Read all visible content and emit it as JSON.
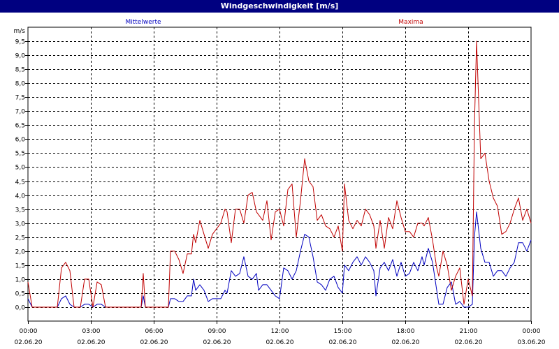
{
  "window": {
    "title": "Windgeschwindigkeit [m/s]"
  },
  "chart_data": {
    "type": "line",
    "title": "Windgeschwindigkeit [m/s]",
    "ylabel": "m/s",
    "ylim": [
      -0.5,
      10.0
    ],
    "xlim": [
      0,
      24
    ],
    "y_ticks": [
      0,
      0.5,
      1,
      1.5,
      2,
      2.5,
      3,
      3.5,
      4,
      4.5,
      5,
      5.5,
      6,
      6.5,
      7,
      7.5,
      8,
      8.5,
      9,
      9.5
    ],
    "y_tick_labels": [
      "0,0",
      "0,5",
      "1,0",
      "1,5",
      "2,0",
      "2,5",
      "3,0",
      "3,5",
      "4,0",
      "4,5",
      "5,0",
      "5,5",
      "6,0",
      "6,5",
      "7,0",
      "7,5",
      "8,0",
      "8,5",
      "9,0",
      "9,5"
    ],
    "x_ticks": [
      0,
      3,
      6,
      9,
      12,
      15,
      18,
      21,
      24
    ],
    "x_tick_times": [
      "00:00",
      "03:00",
      "06:00",
      "09:00",
      "12:00",
      "15:00",
      "18:00",
      "21:00",
      "00:00"
    ],
    "x_tick_dates": [
      "02.06.20",
      "02.06.20",
      "02.06.20",
      "02.06.20",
      "02.06.20",
      "02.06.20",
      "02.06.20",
      "02.06.20",
      "03.06.20"
    ],
    "grid": true,
    "series": [
      {
        "name": "Mittelwerte",
        "color": "#0000c0",
        "points": [
          [
            0,
            0.3
          ],
          [
            0.2,
            0.0
          ],
          [
            0.5,
            0.0
          ],
          [
            1.0,
            0.0
          ],
          [
            1.4,
            0.0
          ],
          [
            1.6,
            0.3
          ],
          [
            1.8,
            0.4
          ],
          [
            2.0,
            0.1
          ],
          [
            2.2,
            0.0
          ],
          [
            2.5,
            0.0
          ],
          [
            2.7,
            0.1
          ],
          [
            2.9,
            0.1
          ],
          [
            3.1,
            0.0
          ],
          [
            3.3,
            0.1
          ],
          [
            3.5,
            0.1
          ],
          [
            3.7,
            0.0
          ],
          [
            4.0,
            0.0
          ],
          [
            5.0,
            0.0
          ],
          [
            5.4,
            0.0
          ],
          [
            5.5,
            0.4
          ],
          [
            5.6,
            0.0
          ],
          [
            6.0,
            0.0
          ],
          [
            6.5,
            0.0
          ],
          [
            6.7,
            0.0
          ],
          [
            6.8,
            0.3
          ],
          [
            7.0,
            0.3
          ],
          [
            7.2,
            0.2
          ],
          [
            7.4,
            0.2
          ],
          [
            7.6,
            0.4
          ],
          [
            7.8,
            0.4
          ],
          [
            7.9,
            1.0
          ],
          [
            8.0,
            0.6
          ],
          [
            8.2,
            0.8
          ],
          [
            8.4,
            0.6
          ],
          [
            8.6,
            0.2
          ],
          [
            8.8,
            0.3
          ],
          [
            9.0,
            0.3
          ],
          [
            9.2,
            0.3
          ],
          [
            9.4,
            0.6
          ],
          [
            9.5,
            0.5
          ],
          [
            9.7,
            1.3
          ],
          [
            9.9,
            1.1
          ],
          [
            10.1,
            1.2
          ],
          [
            10.3,
            1.8
          ],
          [
            10.5,
            1.1
          ],
          [
            10.7,
            1.0
          ],
          [
            10.9,
            1.2
          ],
          [
            11.0,
            0.6
          ],
          [
            11.2,
            0.8
          ],
          [
            11.4,
            0.8
          ],
          [
            11.6,
            0.6
          ],
          [
            11.8,
            0.4
          ],
          [
            12.0,
            0.3
          ],
          [
            12.2,
            1.4
          ],
          [
            12.4,
            1.3
          ],
          [
            12.6,
            1.0
          ],
          [
            12.8,
            1.3
          ],
          [
            13.0,
            2.0
          ],
          [
            13.2,
            2.6
          ],
          [
            13.4,
            2.5
          ],
          [
            13.6,
            1.8
          ],
          [
            13.8,
            0.9
          ],
          [
            14.0,
            0.8
          ],
          [
            14.2,
            0.6
          ],
          [
            14.4,
            1.0
          ],
          [
            14.6,
            1.1
          ],
          [
            14.8,
            0.7
          ],
          [
            15.0,
            0.5
          ],
          [
            15.1,
            1.5
          ],
          [
            15.3,
            1.3
          ],
          [
            15.5,
            1.6
          ],
          [
            15.7,
            1.8
          ],
          [
            15.9,
            1.5
          ],
          [
            16.1,
            1.8
          ],
          [
            16.3,
            1.6
          ],
          [
            16.5,
            1.3
          ],
          [
            16.6,
            0.4
          ],
          [
            16.8,
            1.4
          ],
          [
            17.0,
            1.6
          ],
          [
            17.2,
            1.3
          ],
          [
            17.4,
            1.7
          ],
          [
            17.6,
            1.1
          ],
          [
            17.8,
            1.6
          ],
          [
            18.0,
            1.1
          ],
          [
            18.2,
            1.2
          ],
          [
            18.4,
            1.6
          ],
          [
            18.6,
            1.3
          ],
          [
            18.8,
            1.8
          ],
          [
            18.9,
            1.5
          ],
          [
            19.1,
            2.1
          ],
          [
            19.3,
            1.6
          ],
          [
            19.5,
            0.6
          ],
          [
            19.6,
            0.1
          ],
          [
            19.8,
            0.1
          ],
          [
            20.0,
            0.7
          ],
          [
            20.2,
            0.9
          ],
          [
            20.4,
            0.1
          ],
          [
            20.6,
            0.2
          ],
          [
            20.8,
            0.0
          ],
          [
            21.0,
            0.0
          ],
          [
            21.2,
            0.1
          ],
          [
            21.3,
            2.5
          ],
          [
            21.4,
            3.4
          ],
          [
            21.6,
            2.1
          ],
          [
            21.8,
            1.6
          ],
          [
            22.0,
            1.6
          ],
          [
            22.2,
            1.1
          ],
          [
            22.4,
            1.3
          ],
          [
            22.6,
            1.3
          ],
          [
            22.8,
            1.1
          ],
          [
            23.0,
            1.4
          ],
          [
            23.2,
            1.6
          ],
          [
            23.4,
            2.3
          ],
          [
            23.6,
            2.3
          ],
          [
            23.8,
            2.0
          ],
          [
            24.0,
            2.4
          ]
        ]
      },
      {
        "name": "Maxima",
        "color": "#c00000",
        "points": [
          [
            0,
            0.9
          ],
          [
            0.2,
            0.0
          ],
          [
            0.5,
            0.0
          ],
          [
            1.0,
            0.0
          ],
          [
            1.4,
            0.0
          ],
          [
            1.6,
            1.4
          ],
          [
            1.8,
            1.6
          ],
          [
            2.0,
            1.3
          ],
          [
            2.2,
            0.0
          ],
          [
            2.5,
            0.0
          ],
          [
            2.7,
            1.0
          ],
          [
            2.9,
            1.0
          ],
          [
            3.1,
            0.0
          ],
          [
            3.3,
            0.9
          ],
          [
            3.5,
            0.8
          ],
          [
            3.7,
            0.0
          ],
          [
            4.0,
            0.0
          ],
          [
            5.0,
            0.0
          ],
          [
            5.4,
            0.0
          ],
          [
            5.5,
            1.2
          ],
          [
            5.6,
            0.0
          ],
          [
            6.0,
            0.0
          ],
          [
            6.5,
            0.0
          ],
          [
            6.7,
            0.0
          ],
          [
            6.8,
            2.0
          ],
          [
            7.0,
            2.0
          ],
          [
            7.2,
            1.7
          ],
          [
            7.4,
            1.2
          ],
          [
            7.6,
            1.9
          ],
          [
            7.8,
            1.9
          ],
          [
            7.9,
            2.6
          ],
          [
            8.0,
            2.3
          ],
          [
            8.2,
            3.1
          ],
          [
            8.4,
            2.6
          ],
          [
            8.6,
            2.1
          ],
          [
            8.8,
            2.6
          ],
          [
            9.0,
            2.8
          ],
          [
            9.2,
            3.0
          ],
          [
            9.4,
            3.5
          ],
          [
            9.5,
            3.4
          ],
          [
            9.7,
            2.3
          ],
          [
            9.9,
            3.5
          ],
          [
            10.1,
            3.5
          ],
          [
            10.3,
            3.0
          ],
          [
            10.5,
            4.0
          ],
          [
            10.7,
            4.1
          ],
          [
            10.9,
            3.4
          ],
          [
            11.0,
            3.3
          ],
          [
            11.2,
            3.1
          ],
          [
            11.4,
            3.8
          ],
          [
            11.6,
            2.4
          ],
          [
            11.8,
            3.4
          ],
          [
            12.0,
            3.5
          ],
          [
            12.2,
            2.9
          ],
          [
            12.4,
            4.2
          ],
          [
            12.6,
            4.4
          ],
          [
            12.8,
            2.5
          ],
          [
            13.0,
            3.8
          ],
          [
            13.2,
            5.3
          ],
          [
            13.4,
            4.5
          ],
          [
            13.6,
            4.3
          ],
          [
            13.8,
            3.1
          ],
          [
            14.0,
            3.3
          ],
          [
            14.2,
            2.9
          ],
          [
            14.4,
            2.8
          ],
          [
            14.6,
            2.5
          ],
          [
            14.8,
            2.9
          ],
          [
            15.0,
            2.0
          ],
          [
            15.1,
            4.4
          ],
          [
            15.3,
            3.1
          ],
          [
            15.5,
            2.8
          ],
          [
            15.7,
            3.1
          ],
          [
            15.9,
            2.9
          ],
          [
            16.1,
            3.5
          ],
          [
            16.3,
            3.3
          ],
          [
            16.5,
            2.9
          ],
          [
            16.6,
            2.1
          ],
          [
            16.8,
            3.1
          ],
          [
            17.0,
            2.1
          ],
          [
            17.2,
            3.2
          ],
          [
            17.4,
            2.8
          ],
          [
            17.6,
            3.8
          ],
          [
            17.8,
            3.2
          ],
          [
            18.0,
            2.7
          ],
          [
            18.2,
            2.7
          ],
          [
            18.4,
            2.5
          ],
          [
            18.6,
            3.0
          ],
          [
            18.8,
            3.0
          ],
          [
            18.9,
            2.9
          ],
          [
            19.1,
            3.2
          ],
          [
            19.3,
            2.4
          ],
          [
            19.5,
            1.4
          ],
          [
            19.6,
            1.1
          ],
          [
            19.8,
            2.0
          ],
          [
            20.0,
            1.5
          ],
          [
            20.2,
            0.6
          ],
          [
            20.4,
            1.1
          ],
          [
            20.6,
            1.4
          ],
          [
            20.8,
            0.1
          ],
          [
            21.0,
            1.0
          ],
          [
            21.2,
            0.4
          ],
          [
            21.3,
            6.5
          ],
          [
            21.4,
            9.5
          ],
          [
            21.6,
            5.3
          ],
          [
            21.8,
            5.5
          ],
          [
            22.0,
            4.5
          ],
          [
            22.2,
            3.9
          ],
          [
            22.4,
            3.6
          ],
          [
            22.6,
            2.6
          ],
          [
            22.8,
            2.7
          ],
          [
            23.0,
            3.0
          ],
          [
            23.2,
            3.5
          ],
          [
            23.4,
            3.9
          ],
          [
            23.6,
            3.1
          ],
          [
            23.8,
            3.5
          ],
          [
            24.0,
            3.0
          ]
        ]
      }
    ]
  }
}
